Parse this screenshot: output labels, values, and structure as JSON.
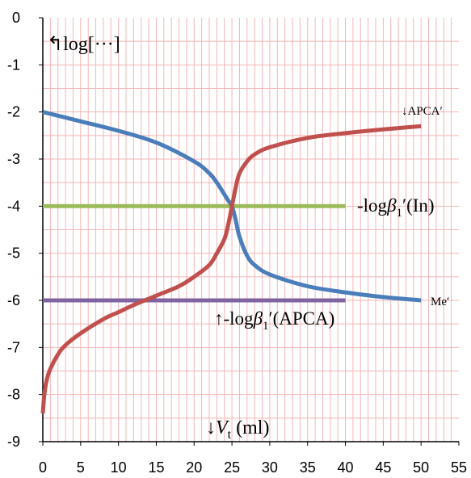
{
  "chart_data": {
    "type": "line",
    "title": "",
    "xlabel": "↓V_t (ml)",
    "xlabel_parts": {
      "arrow": "↓",
      "var": "V",
      "sub": "t",
      "unit": " (ml)"
    },
    "ylabel": "↰log[···]",
    "xlim": [
      0,
      55
    ],
    "ylim": [
      -9,
      0
    ],
    "x_ticks": [
      "0",
      "5",
      "10",
      "15",
      "20",
      "25",
      "30",
      "35",
      "40",
      "45",
      "50",
      "55"
    ],
    "y_ticks": [
      "0",
      "-1",
      "-2",
      "-3",
      "-4",
      "-5",
      "-6",
      "-7",
      "-8",
      "-9"
    ],
    "grid": true,
    "grid_color": "#f5b5b5",
    "series": [
      {
        "name": "Me′",
        "label_parts": {
          "text": "Me′"
        },
        "color": "#4a7ebb",
        "x": [
          0,
          5,
          10,
          15,
          20,
          22,
          23,
          24,
          24.5,
          25,
          25.5,
          26,
          27,
          28,
          30,
          35,
          40,
          45,
          50
        ],
        "y": [
          -2.0,
          -2.2,
          -2.4,
          -2.65,
          -3.05,
          -3.3,
          -3.5,
          -3.75,
          -3.88,
          -4.0,
          -4.3,
          -4.65,
          -5.05,
          -5.25,
          -5.45,
          -5.7,
          -5.83,
          -5.93,
          -6.0
        ]
      },
      {
        "name": "APCA′",
        "label_parts": {
          "arrow": "↓",
          "text": "APCA′"
        },
        "color": "#c0504d",
        "x": [
          0,
          0.2,
          0.5,
          1,
          2,
          3,
          5,
          8,
          10,
          12,
          15,
          18,
          20,
          22,
          23,
          24,
          24.5,
          25,
          25.5,
          26,
          27,
          28,
          30,
          35,
          40,
          45,
          50
        ],
        "y": [
          -8.4,
          -8.0,
          -7.7,
          -7.45,
          -7.15,
          -6.95,
          -6.7,
          -6.4,
          -6.25,
          -6.1,
          -5.9,
          -5.7,
          -5.5,
          -5.25,
          -5.0,
          -4.7,
          -4.4,
          -4.0,
          -3.6,
          -3.3,
          -3.05,
          -2.9,
          -2.75,
          -2.55,
          -2.45,
          -2.37,
          -2.3
        ]
      },
      {
        "name": "-logβ1′(In)",
        "label_parts": {
          "pre": "-log",
          "beta": "β",
          "sub": "1",
          "post": "′(In)"
        },
        "color": "#9bbb59",
        "x": [
          0,
          40
        ],
        "y": [
          -4,
          -4
        ]
      },
      {
        "name": "-logβ1′(APCA)",
        "label_parts": {
          "arrow": "↑",
          "pre": "-log",
          "beta": "β",
          "sub": "1",
          "post": "′(APCA)"
        },
        "color": "#8064a2",
        "x": [
          0,
          40
        ],
        "y": [
          -6,
          -6
        ]
      }
    ]
  }
}
